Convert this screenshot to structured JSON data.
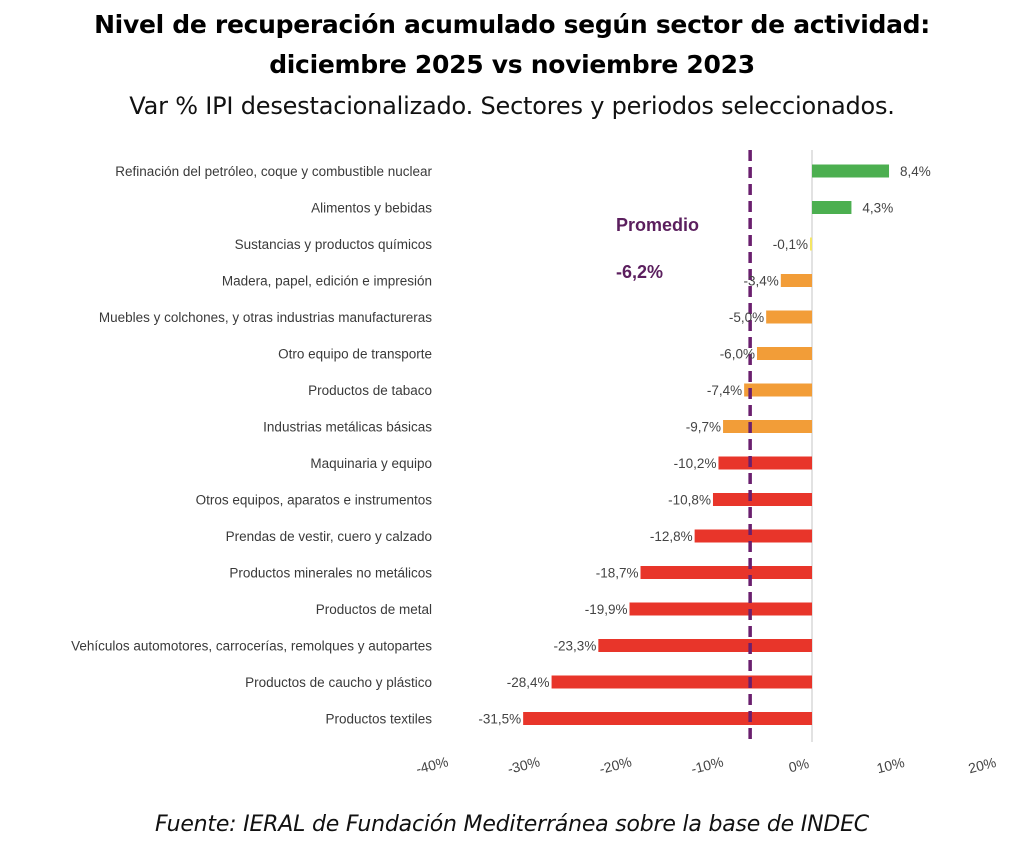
{
  "header": {
    "title_line1": "Nivel de recuperación acumulado según sector de actividad:",
    "title_line2": "diciembre 2025 vs noviembre 2023",
    "subtitle": "Var % IPI desestacionalizado. Sectores y periodos seleccionados."
  },
  "footer": {
    "source": "Fuente: IERAL de Fundación Mediterránea sobre la base de INDEC"
  },
  "colors": {
    "positive": "#4caf50",
    "near_zero": "#f5e663",
    "moderate_negative": "#f29d38",
    "strong_negative": "#e8352a",
    "average_line": "#6a1f6e",
    "zero_line": "#d9d9d9"
  },
  "chart_data": {
    "type": "bar",
    "orientation": "horizontal",
    "title": "Nivel de recuperación acumulado según sector de actividad: diciembre 2025 vs noviembre 2023",
    "subtitle": "Var % IPI desestacionalizado. Sectores y periodos seleccionados.",
    "xlabel": "",
    "ylabel": "",
    "xlim": [
      -40,
      20
    ],
    "x_ticks": [
      -40,
      -30,
      -20,
      -10,
      0,
      10,
      20
    ],
    "x_tick_labels": [
      "-40%",
      "-30%",
      "-20%",
      "-10%",
      "0%",
      "10%",
      "20%"
    ],
    "grid": false,
    "legend": "none",
    "categories": [
      "Refinación del petróleo, coque y combustible nuclear",
      "Alimentos y bebidas",
      "Sustancias y productos químicos",
      "Madera, papel, edición e impresión",
      "Muebles y colchones, y otras industrias manufactureras",
      "Otro equipo de transporte",
      "Productos de tabaco",
      "Industrias metálicas básicas",
      "Maquinaria y equipo",
      "Otros equipos, aparatos e instrumentos",
      "Prendas de vestir, cuero y calzado",
      "Productos minerales no metálicos",
      "Productos de metal",
      "Vehículos automotores, carrocerías, remolques y autopartes",
      "Productos de caucho y plástico",
      "Productos textiles"
    ],
    "values": [
      8.4,
      4.3,
      -0.1,
      -3.4,
      -5.0,
      -6.0,
      -7.4,
      -9.7,
      -10.2,
      -10.8,
      -12.8,
      -18.7,
      -19.9,
      -23.3,
      -28.4,
      -31.5
    ],
    "value_labels": [
      "8,4%",
      "4,3%",
      "-0,1%",
      "-3,4%",
      "-5,0%",
      "-6,0%",
      "-7,4%",
      "-9,7%",
      "-10,2%",
      "-10,8%",
      "-12,8%",
      "-18,7%",
      "-19,9%",
      "-23,3%",
      "-28,4%",
      "-31,5%"
    ],
    "bar_color_groups": [
      "positive",
      "positive",
      "near_zero",
      "moderate_negative",
      "moderate_negative",
      "moderate_negative",
      "moderate_negative",
      "moderate_negative",
      "strong_negative",
      "strong_negative",
      "strong_negative",
      "strong_negative",
      "strong_negative",
      "strong_negative",
      "strong_negative",
      "strong_negative"
    ],
    "average": {
      "value": -6.2,
      "label_title": "Promedio",
      "label_value": "-6,2%",
      "style": "dashed vertical line"
    }
  }
}
